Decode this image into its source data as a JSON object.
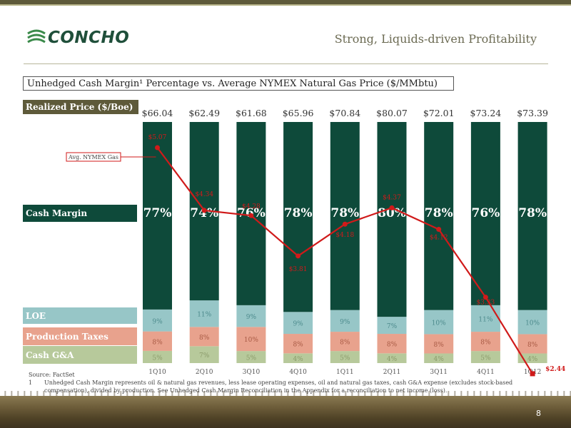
{
  "header": {
    "logo_text": "CONCHO",
    "slide_title": "Strong, Liquids-driven Profitability"
  },
  "chart_data": {
    "type": "bar",
    "stacked": true,
    "title": "Unhedged Cash Margin¹ Percentage vs. Average NYMEX Natural Gas Price ($/MMbtu)",
    "realized_price_label": "Realized Price ($/Boe)",
    "categories": [
      "1Q10",
      "2Q10",
      "3Q10",
      "4Q10",
      "1Q11",
      "2Q11",
      "3Q11",
      "4Q11",
      "1Q12"
    ],
    "realized_prices": [
      "$66.04",
      "$62.49",
      "$61.68",
      "$65.96",
      "$70.84",
      "$80.07",
      "$72.01",
      "$73.24",
      "$73.39"
    ],
    "series": [
      {
        "name": "Cash G&A",
        "color": "#b7c99b",
        "values": [
          5,
          7,
          5,
          4,
          5,
          4,
          4,
          5,
          4
        ],
        "labels": [
          "5%",
          "7%",
          "5%",
          "4%",
          "5%",
          "4%",
          "4%",
          "5%",
          "4%"
        ]
      },
      {
        "name": "Production Taxes",
        "color": "#e8a28d",
        "values": [
          8,
          8,
          10,
          8,
          8,
          8,
          8,
          8,
          8
        ],
        "labels": [
          "8%",
          "8%",
          "10%",
          "8%",
          "8%",
          "8%",
          "8%",
          "8%",
          "8%"
        ]
      },
      {
        "name": "LOE",
        "color": "#97c6c7",
        "values": [
          9,
          11,
          9,
          9,
          9,
          7,
          10,
          11,
          10
        ],
        "labels": [
          "9%",
          "11%",
          "9%",
          "9%",
          "9%",
          "7%",
          "10%",
          "11%",
          "10%"
        ]
      },
      {
        "name": "Cash Margin",
        "color": "#0e4a3a",
        "values": [
          77,
          74,
          76,
          78,
          78,
          80,
          78,
          76,
          78
        ],
        "labels": [
          "77%",
          "74%",
          "76%",
          "78%",
          "78%",
          "80%",
          "78%",
          "76%",
          "78%"
        ]
      }
    ],
    "gas_line": {
      "name": "Avg. NYMEX Gas",
      "color": "#d01a1a",
      "values": [
        5.07,
        4.34,
        4.28,
        3.81,
        4.18,
        4.37,
        4.12,
        3.33,
        2.44
      ],
      "labels": [
        "$5.07",
        "$4.34",
        "$4.28",
        "$3.81",
        "$4.18",
        "$4.37",
        "$4.12",
        "$3.33",
        "$2.44"
      ]
    },
    "legend": "left",
    "grid": false
  },
  "footnotes": {
    "source": "Source: FactSet",
    "note_number": "1",
    "note_text": "Unhedged Cash Margin represents oil & natural gas revenues, less lease operating expenses, oil and natural gas taxes, cash G&A expense (excludes stock-based compensation), divided by production.  See Unhedged Cash Margin Reconciliation in the Appendix for a reconciliation to net income (loss)."
  },
  "page_number": "8"
}
